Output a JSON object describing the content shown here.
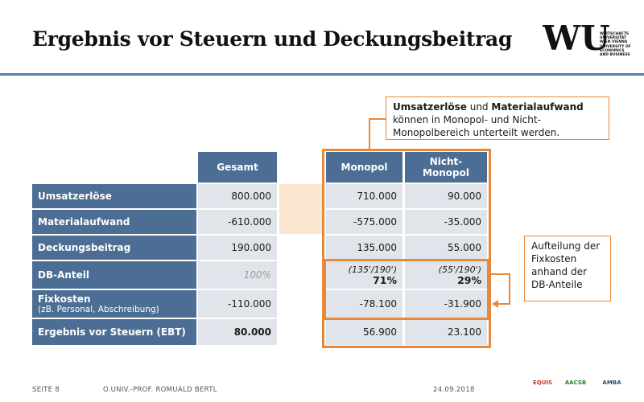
{
  "slide": {
    "title": "Ergebnis vor Steuern und Deckungsbeitrag"
  },
  "logo": {
    "mark": "WU",
    "lines": [
      "WIRTSCHAFTS",
      "UNIVERSITÄT",
      "WIEN VIENNA",
      "UNIVERSITY OF",
      "ECONOMICS",
      "AND BUSINESS"
    ]
  },
  "table": {
    "headers": {
      "gesamt": "Gesamt",
      "monopol": "Monopol",
      "nicht_monopol_1": "Nicht-",
      "nicht_monopol_2": "Monopol"
    },
    "rows": [
      {
        "label": "Umsatzerlöse",
        "gesamt": "800.000",
        "monopol": "710.000",
        "nicht": "90.000"
      },
      {
        "label": "Materialaufwand",
        "gesamt": "-610.000",
        "monopol": "-575.000",
        "nicht": "-35.000"
      },
      {
        "label": "Deckungsbeitrag",
        "gesamt": "190.000",
        "monopol": "135.000",
        "nicht": "55.000"
      },
      {
        "label": "DB-Anteil",
        "gesamt": "100%",
        "monopol_formula": "(135'/190')",
        "monopol_pct": "71%",
        "nicht_formula": "(55'/190')",
        "nicht_pct": "29%"
      },
      {
        "label": "Fixkosten",
        "sublabel": "(zB. Personal, Abschreibung)",
        "gesamt": "-110.000",
        "monopol": "-78.100",
        "nicht": "-31.900"
      },
      {
        "label": "Ergebnis vor Steuern (EBT)",
        "gesamt": "80.000",
        "monopol": "56.900",
        "nicht": "23.100"
      }
    ]
  },
  "callout_top": {
    "bold1": "Umsatzerlöse",
    "mid": " und ",
    "bold2": "Materialaufwand",
    "line2": "können in Monopol- und Nicht-",
    "line3": "Monopolbereich unterteilt werden."
  },
  "callout_right": {
    "lines": [
      "Aufteilung der",
      "Fixkosten",
      "anhand der",
      "DB-Anteile"
    ]
  },
  "footer": {
    "page": "SEITE 8",
    "author": "O.UNIV.-PROF. ROMUALD BERTL",
    "date": "24.09.2018",
    "logos": [
      "EQUIS",
      "AACSB",
      "AMBA"
    ]
  },
  "colors": {
    "header_blue": "#4d6e94",
    "value_grey": "#e1e4ea",
    "accent_orange": "#e8883a",
    "peach": "#fbe5cf"
  }
}
